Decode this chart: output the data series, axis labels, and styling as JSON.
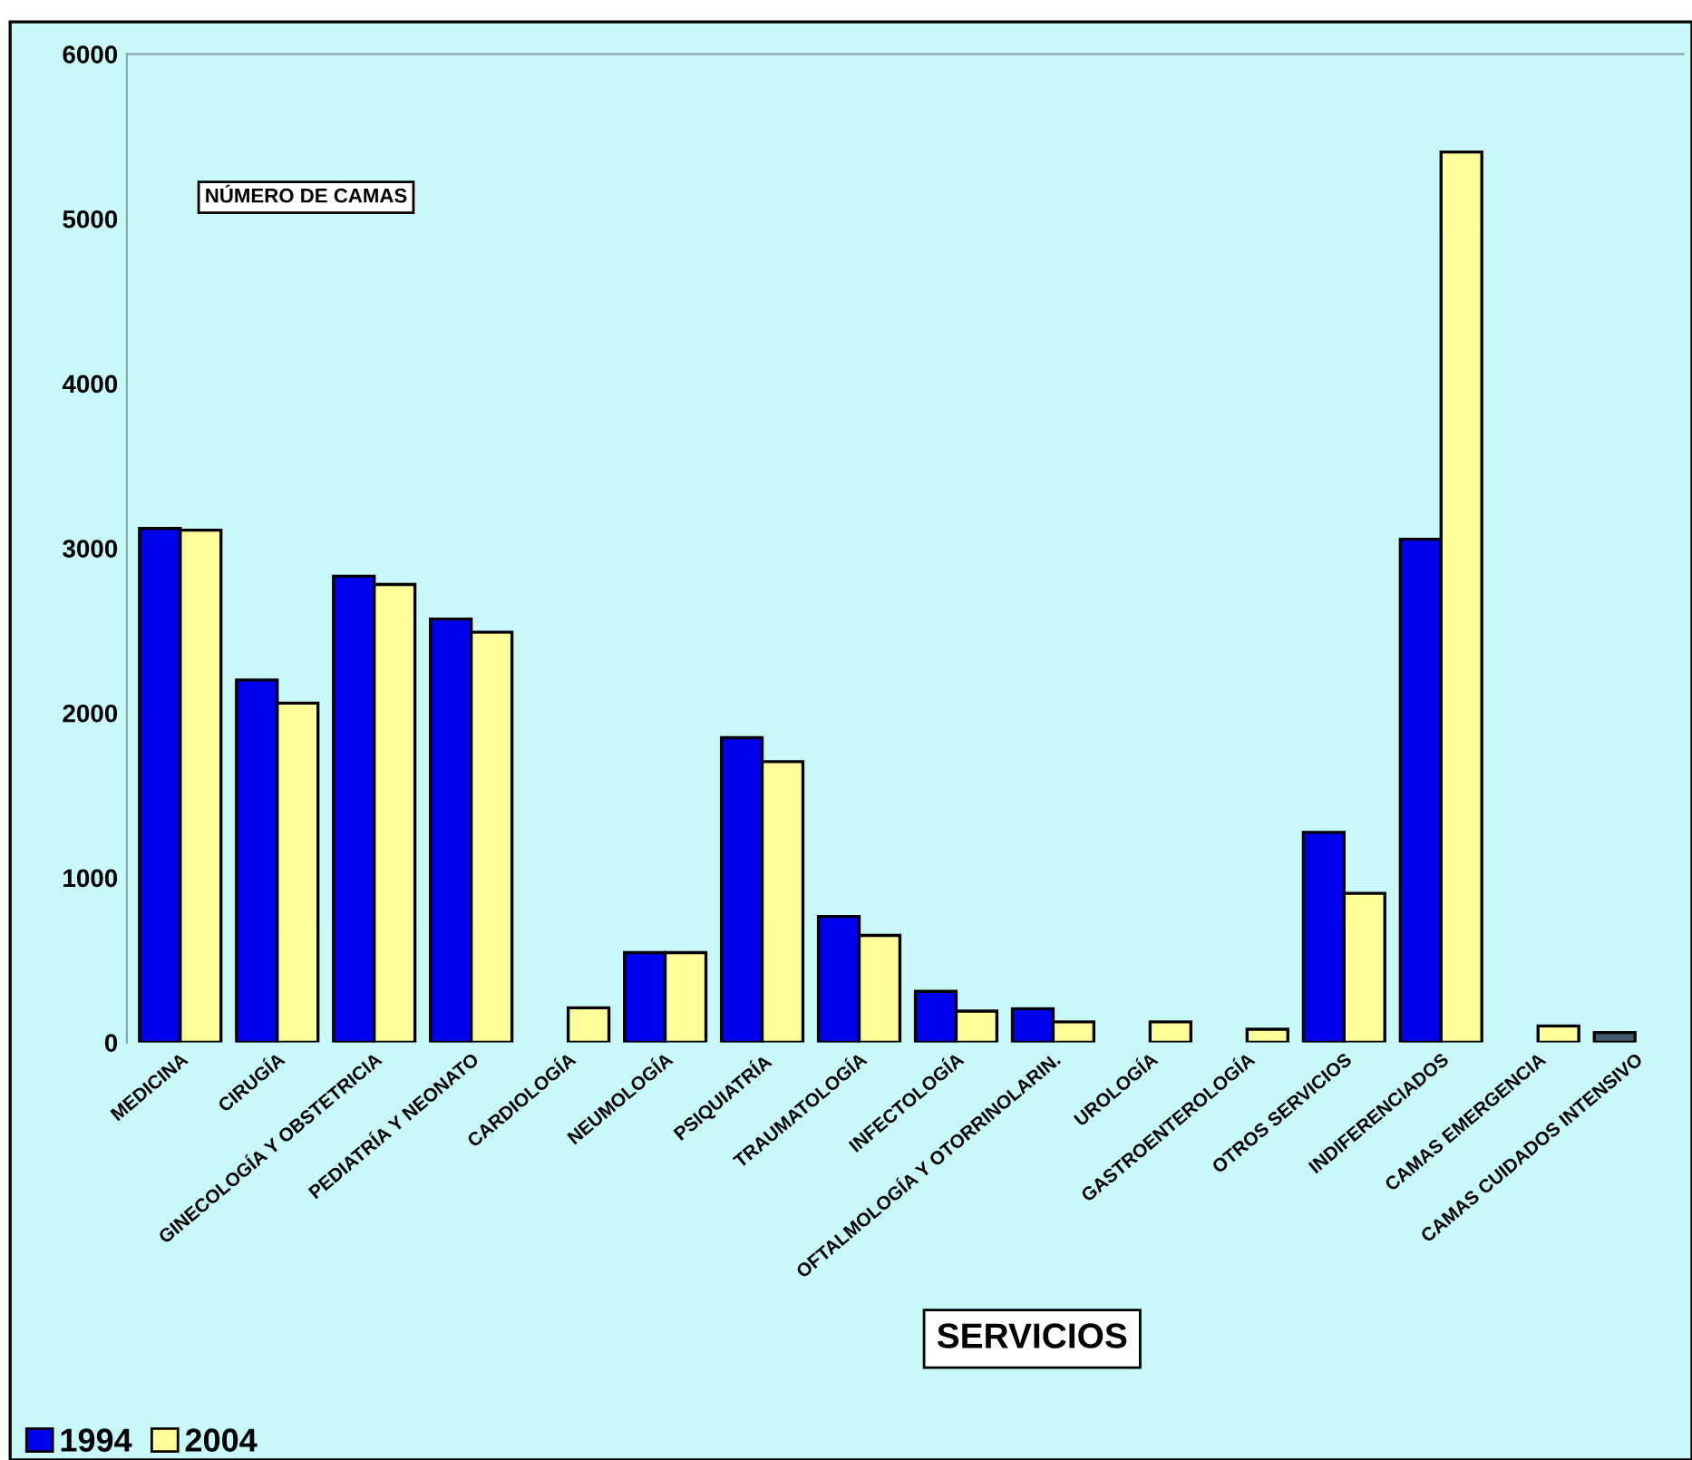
{
  "chart_data": {
    "type": "bar",
    "title": "NÚMERO DE CAMAS",
    "xlabel": "SERVICIOS",
    "categories": [
      "MEDICINA",
      "CIRUGÍA",
      "GINECOLOGÍA Y OBSTETRICIA",
      "PEDIATRÍA Y NEONATO",
      "CARDIOLOGÍA",
      "NEUMOLOGÍA",
      "PSIQUIATRÍA",
      "TRAUMATOLOGÍA",
      "INFECTOLOGÍA",
      "OFTALMOLOGÍA Y OTORRINOLARIN.",
      "UROLOGÍA",
      "GASTROENTEROLOGÍA",
      "OTROS SERVICIOS",
      "INDIFERENCIADOS",
      "CAMAS EMERGENCIA",
      "CAMAS CUIDADOS INTENSIVO"
    ],
    "series": [
      {
        "name": "1994",
        "color": "#0000ee",
        "colors": [
          "#0000ee",
          "#0000ee",
          "#0000ee",
          "#0000ee",
          "#0000ee",
          "#0000ee",
          "#0000ee",
          "#0000ee",
          "#0000ee",
          "#0000ee",
          "#0000ee",
          "#0000ee",
          "#0000ee",
          "#0000ee",
          "#0000ee",
          "#3f5a6a"
        ],
        "values": [
          3120,
          2200,
          2830,
          2570,
          null,
          545,
          1850,
          765,
          310,
          205,
          null,
          null,
          1275,
          3055,
          null,
          60
        ]
      },
      {
        "name": "2004",
        "color": "#ffff99",
        "values": [
          3110,
          2060,
          2780,
          2490,
          210,
          545,
          1705,
          650,
          190,
          125,
          125,
          80,
          905,
          5405,
          100,
          null
        ]
      }
    ],
    "ylim": [
      0,
      6000
    ],
    "yticks": [
      0,
      1000,
      2000,
      3000,
      4000,
      5000,
      6000
    ],
    "grid": false,
    "legend": "bottom left"
  }
}
